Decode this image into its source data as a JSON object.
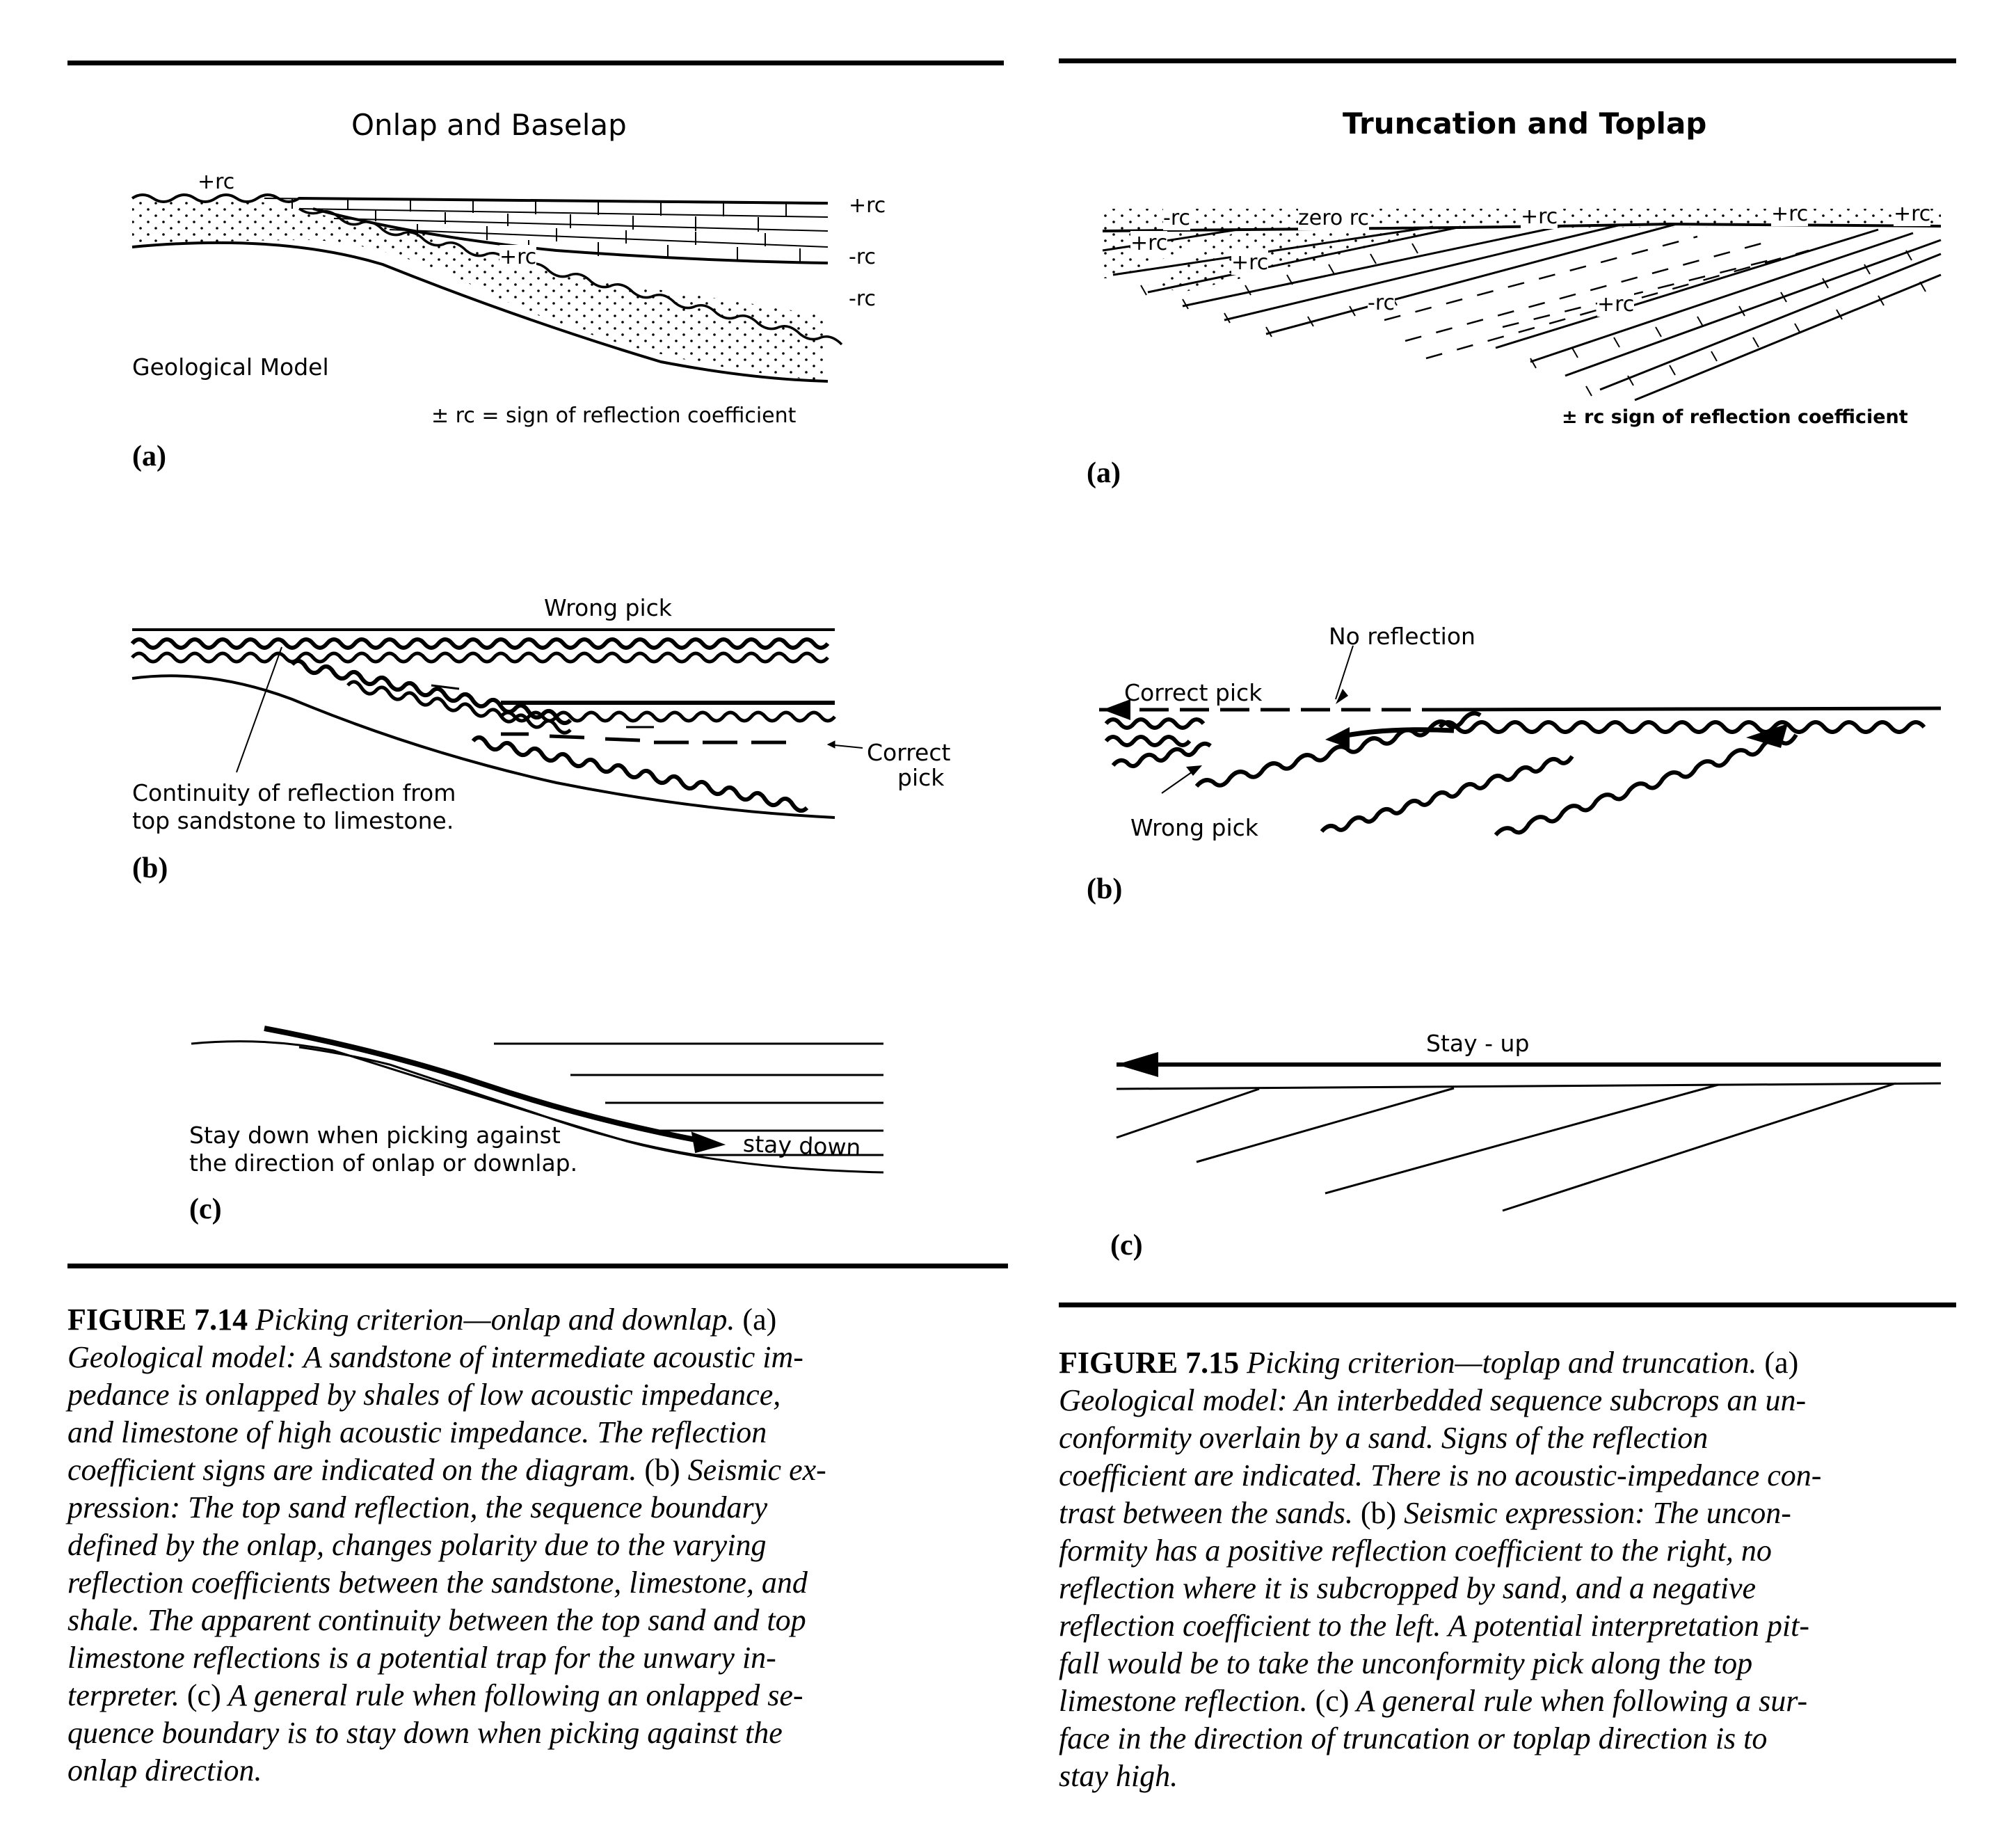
{
  "fig14": {
    "title": "Onlap and Baselap",
    "a": {
      "rc_top_left": "+rc",
      "rc_right_1": "+rc",
      "rc_right_2": "-rc",
      "rc_right_3": "-rc",
      "rc_middle": "+rc",
      "model_label": "Geological Model",
      "legend": "± rc = sign of reflection coefficient",
      "letter": "(a)"
    },
    "b": {
      "wrong_pick": "Wrong pick",
      "correct_pick_1": "Correct",
      "correct_pick_2": "pick",
      "continuity_1": "Continuity of reflection from",
      "continuity_2": "top sandstone to limestone.",
      "letter": "(b)"
    },
    "c": {
      "note_1": "Stay down when picking against",
      "note_2": "the direction of onlap or downlap.",
      "stay_down": "stay down",
      "letter": "(c)"
    },
    "caption": {
      "label": "FIGURE 7.14",
      "l1": " Picking criterion—onlap and downlap.",
      "l1b": " (a)",
      "l2": "Geological model: A sandstone of intermediate acoustic im-",
      "l3": "pedance is onlapped by shales of low acoustic impedance,",
      "l4": "and limestone of high acoustic impedance. The reflection",
      "l5a": "coefficient signs are indicated on the diagram.",
      "l5b": " (b)",
      "l5c": " Seismic ex-",
      "l6": "pression: The top sand reflection, the sequence boundary",
      "l7": "defined by the onlap, changes polarity due to the varying",
      "l8": "reflection coefficients between the sandstone, limestone, and",
      "l9": "shale. The apparent continuity between the top sand and top",
      "l10": "limestone reflections is a potential trap for the unwary in-",
      "l11a": "terpreter.",
      "l11b": " (c)",
      "l11c": " A general rule when following an onlapped se-",
      "l12": "quence boundary is to stay down when picking against the",
      "l13": "onlap direction."
    }
  },
  "fig15": {
    "title": "Truncation and Toplap",
    "a": {
      "rc_1": "-rc",
      "rc_2": "zero rc",
      "rc_3": "+rc",
      "rc_4": "+rc",
      "rc_5": "+rc",
      "rc_6": "+rc",
      "rc_7": "+rc",
      "rc_8": "-rc",
      "rc_9": "+rc",
      "legend": "± rc  sign of reflection coefficient",
      "letter": "(a)"
    },
    "b": {
      "no_reflection": "No reflection",
      "correct_pick": "Correct pick",
      "wrong_pick": "Wrong pick",
      "letter": "(b)"
    },
    "c": {
      "stay_up": "Stay - up",
      "letter": "(c)"
    },
    "caption": {
      "label": "FIGURE 7.15",
      "l1": " Picking criterion—toplap and truncation.",
      "l1b": " (a)",
      "l2": "Geological model: An interbedded sequence subcrops an un-",
      "l3": "conformity overlain by a sand. Signs of the reflection",
      "l4": "coefficient are indicated. There is no acoustic-impedance con-",
      "l5a": "trast between the sands.",
      "l5b": " (b)",
      "l5c": " Seismic expression: The uncon-",
      "l6": "formity has a positive reflection coefficient to the right, no",
      "l7": "reflection where it is subcropped by sand, and a negative",
      "l8": "reflection coefficient to the left. A potential interpretation pit-",
      "l9": "fall would be to take the unconformity pick along the top",
      "l10a": "limestone reflection.",
      "l10b": " (c)",
      "l10c": " A general rule when following a sur-",
      "l11": "face in the direction of truncation or toplap direction is to",
      "l12": "stay high."
    }
  }
}
